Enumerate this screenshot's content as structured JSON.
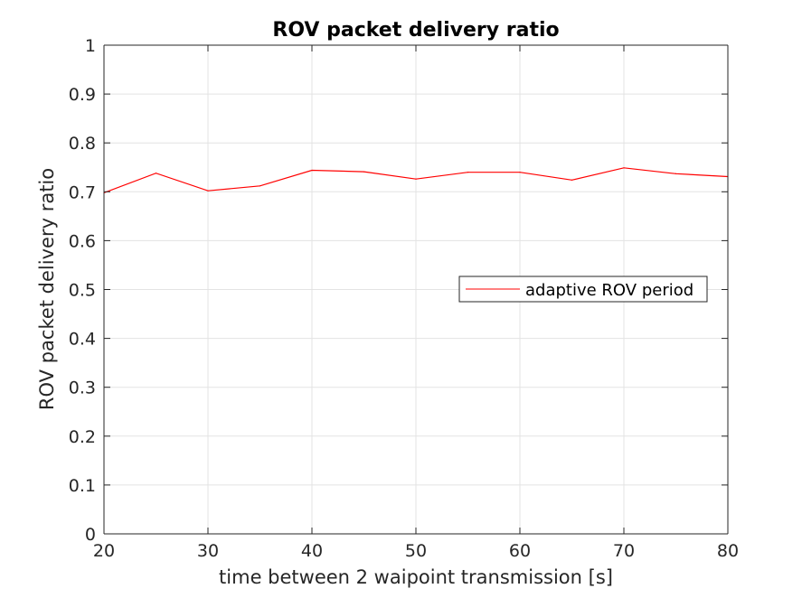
{
  "chart_data": {
    "type": "line",
    "title": "ROV packet delivery ratio",
    "xlabel": "time between 2 waipoint transmission [s]",
    "ylabel": "ROV packet delivery ratio",
    "xlim": [
      20,
      80
    ],
    "ylim": [
      0,
      1
    ],
    "xticks": [
      20,
      30,
      40,
      50,
      60,
      70,
      80
    ],
    "yticks": [
      0,
      0.1,
      0.2,
      0.3,
      0.4,
      0.5,
      0.6,
      0.7,
      0.8,
      0.9,
      1
    ],
    "xtick_labels": [
      "20",
      "30",
      "40",
      "50",
      "60",
      "70",
      "80"
    ],
    "ytick_labels": [
      "0",
      "0.1",
      "0.2",
      "0.3",
      "0.4",
      "0.5",
      "0.6",
      "0.7",
      "0.8",
      "0.9",
      "1"
    ],
    "grid": true,
    "legend_position": "right",
    "series": [
      {
        "name": "adaptive ROV period",
        "color": "#ff0000",
        "x": [
          20,
          25,
          30,
          35,
          40,
          45,
          50,
          55,
          60,
          65,
          70,
          75,
          80
        ],
        "y": [
          0.698,
          0.738,
          0.702,
          0.712,
          0.744,
          0.741,
          0.726,
          0.74,
          0.74,
          0.724,
          0.749,
          0.737,
          0.731
        ]
      }
    ]
  }
}
